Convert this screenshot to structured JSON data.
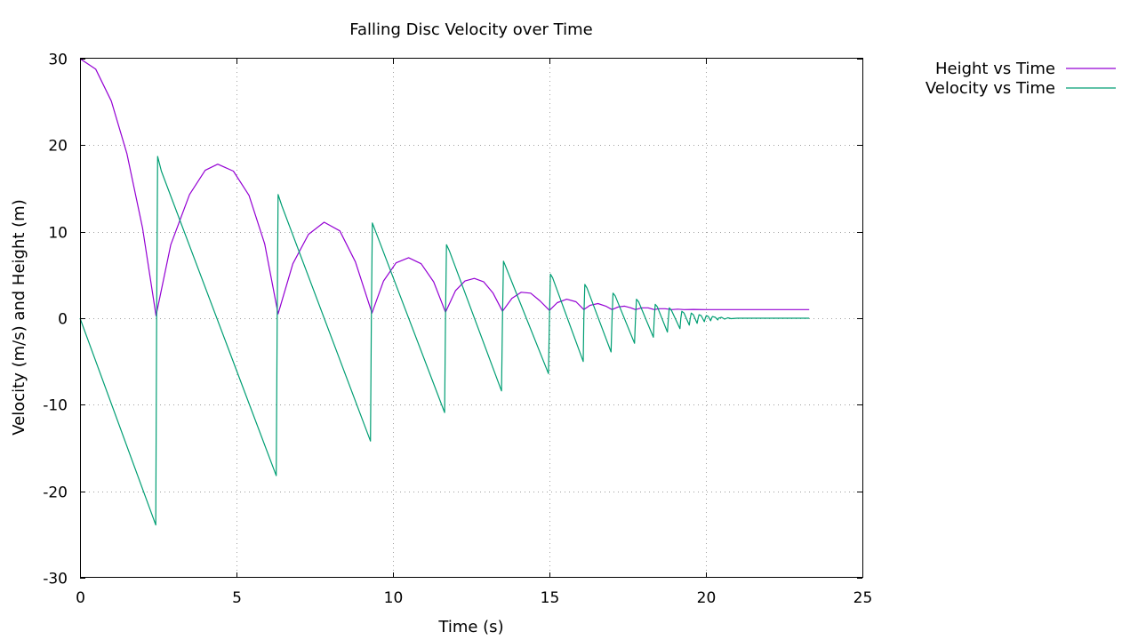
{
  "chart_data": {
    "type": "line",
    "title": "Falling Disc Velocity over Time",
    "xlabel": "Time (s)",
    "ylabel": "Velocity (m/s) and Height (m)",
    "xlim": [
      0,
      25
    ],
    "ylim": [
      -30,
      30
    ],
    "xticks": [
      0,
      5,
      10,
      15,
      20,
      25
    ],
    "yticks": [
      -30,
      -20,
      -10,
      0,
      10,
      20,
      30
    ],
    "grid": true,
    "legend_position": "top-right, outside plot",
    "series": [
      {
        "name": "Height vs Time",
        "color": "#9400d3",
        "points": [
          [
            0,
            30
          ],
          [
            0.5,
            28.8
          ],
          [
            1.0,
            25.1
          ],
          [
            1.5,
            19.0
          ],
          [
            2.0,
            10.4
          ],
          [
            2.43,
            0.3
          ],
          [
            2.9,
            8.5
          ],
          [
            3.5,
            14.3
          ],
          [
            4.0,
            17.1
          ],
          [
            4.4,
            17.8
          ],
          [
            4.9,
            17.0
          ],
          [
            5.4,
            14.2
          ],
          [
            5.9,
            8.6
          ],
          [
            6.33,
            0.5
          ],
          [
            6.8,
            6.3
          ],
          [
            7.3,
            9.7
          ],
          [
            7.8,
            11.1
          ],
          [
            8.3,
            10.1
          ],
          [
            8.8,
            6.5
          ],
          [
            9.33,
            0.6
          ],
          [
            9.7,
            4.3
          ],
          [
            10.1,
            6.4
          ],
          [
            10.5,
            7.0
          ],
          [
            10.9,
            6.3
          ],
          [
            11.3,
            4.2
          ],
          [
            11.68,
            0.7
          ],
          [
            12.0,
            3.2
          ],
          [
            12.3,
            4.3
          ],
          [
            12.6,
            4.6
          ],
          [
            12.9,
            4.2
          ],
          [
            13.2,
            2.9
          ],
          [
            13.5,
            0.8
          ],
          [
            13.8,
            2.3
          ],
          [
            14.1,
            3.0
          ],
          [
            14.4,
            2.9
          ],
          [
            14.7,
            2.0
          ],
          [
            15.0,
            0.9
          ],
          [
            15.25,
            1.8
          ],
          [
            15.55,
            2.2
          ],
          [
            15.85,
            1.9
          ],
          [
            16.1,
            1.0
          ],
          [
            16.3,
            1.5
          ],
          [
            16.55,
            1.7
          ],
          [
            16.8,
            1.4
          ],
          [
            17.0,
            1.0
          ],
          [
            17.2,
            1.3
          ],
          [
            17.4,
            1.4
          ],
          [
            17.6,
            1.2
          ],
          [
            17.75,
            1.0
          ],
          [
            17.95,
            1.2
          ],
          [
            18.15,
            1.2
          ],
          [
            18.35,
            1.0
          ],
          [
            18.5,
            1.1
          ],
          [
            18.7,
            1.1
          ],
          [
            18.9,
            1.0
          ],
          [
            19.1,
            1.05
          ],
          [
            19.3,
            1.0
          ],
          [
            19.6,
            1.02
          ],
          [
            20.0,
            1.0
          ],
          [
            23.3,
            1.0
          ]
        ]
      },
      {
        "name": "Velocity vs Time",
        "color": "#009e73",
        "points": [
          [
            0,
            0
          ],
          [
            2.42,
            -23.9
          ],
          [
            2.45,
            0
          ],
          [
            2.48,
            18.7
          ],
          [
            2.6,
            17.0
          ],
          [
            6.27,
            -18.2
          ],
          [
            6.3,
            0
          ],
          [
            6.33,
            14.3
          ],
          [
            6.45,
            13.0
          ],
          [
            9.28,
            -14.2
          ],
          [
            9.31,
            0
          ],
          [
            9.34,
            11.0
          ],
          [
            9.45,
            10.0
          ],
          [
            11.65,
            -10.9
          ],
          [
            11.68,
            0
          ],
          [
            11.71,
            8.5
          ],
          [
            11.8,
            7.8
          ],
          [
            13.47,
            -8.4
          ],
          [
            13.5,
            0
          ],
          [
            13.53,
            6.6
          ],
          [
            13.6,
            6.0
          ],
          [
            14.97,
            -6.4
          ],
          [
            15.0,
            0
          ],
          [
            15.03,
            5.1
          ],
          [
            15.1,
            4.7
          ],
          [
            16.08,
            -5.0
          ],
          [
            16.1,
            0
          ],
          [
            16.13,
            3.9
          ],
          [
            16.2,
            3.5
          ],
          [
            16.97,
            -3.9
          ],
          [
            17.0,
            0
          ],
          [
            17.03,
            2.9
          ],
          [
            17.1,
            2.6
          ],
          [
            17.72,
            -2.9
          ],
          [
            17.75,
            0
          ],
          [
            17.78,
            2.2
          ],
          [
            17.85,
            1.9
          ],
          [
            18.32,
            -2.2
          ],
          [
            18.35,
            0
          ],
          [
            18.38,
            1.6
          ],
          [
            18.45,
            1.3
          ],
          [
            18.77,
            -1.6
          ],
          [
            18.8,
            0
          ],
          [
            18.83,
            1.2
          ],
          [
            18.9,
            0.9
          ],
          [
            19.17,
            -1.2
          ],
          [
            19.2,
            0
          ],
          [
            19.23,
            0.8
          ],
          [
            19.3,
            0.6
          ],
          [
            19.47,
            -0.8
          ],
          [
            19.5,
            0
          ],
          [
            19.53,
            0.6
          ],
          [
            19.6,
            0.4
          ],
          [
            19.72,
            -0.6
          ],
          [
            19.75,
            0
          ],
          [
            19.78,
            0.4
          ],
          [
            19.85,
            0.3
          ],
          [
            19.95,
            -0.4
          ],
          [
            19.98,
            0
          ],
          [
            20.01,
            0.3
          ],
          [
            20.08,
            0.2
          ],
          [
            20.15,
            -0.3
          ],
          [
            20.18,
            0
          ],
          [
            20.21,
            0.2
          ],
          [
            20.3,
            0.1
          ],
          [
            20.38,
            -0.2
          ],
          [
            20.4,
            0
          ],
          [
            20.5,
            0.1
          ],
          [
            20.6,
            -0.1
          ],
          [
            20.7,
            0.05
          ],
          [
            20.8,
            -0.05
          ],
          [
            21.0,
            0
          ],
          [
            23.3,
            0
          ]
        ]
      }
    ]
  }
}
